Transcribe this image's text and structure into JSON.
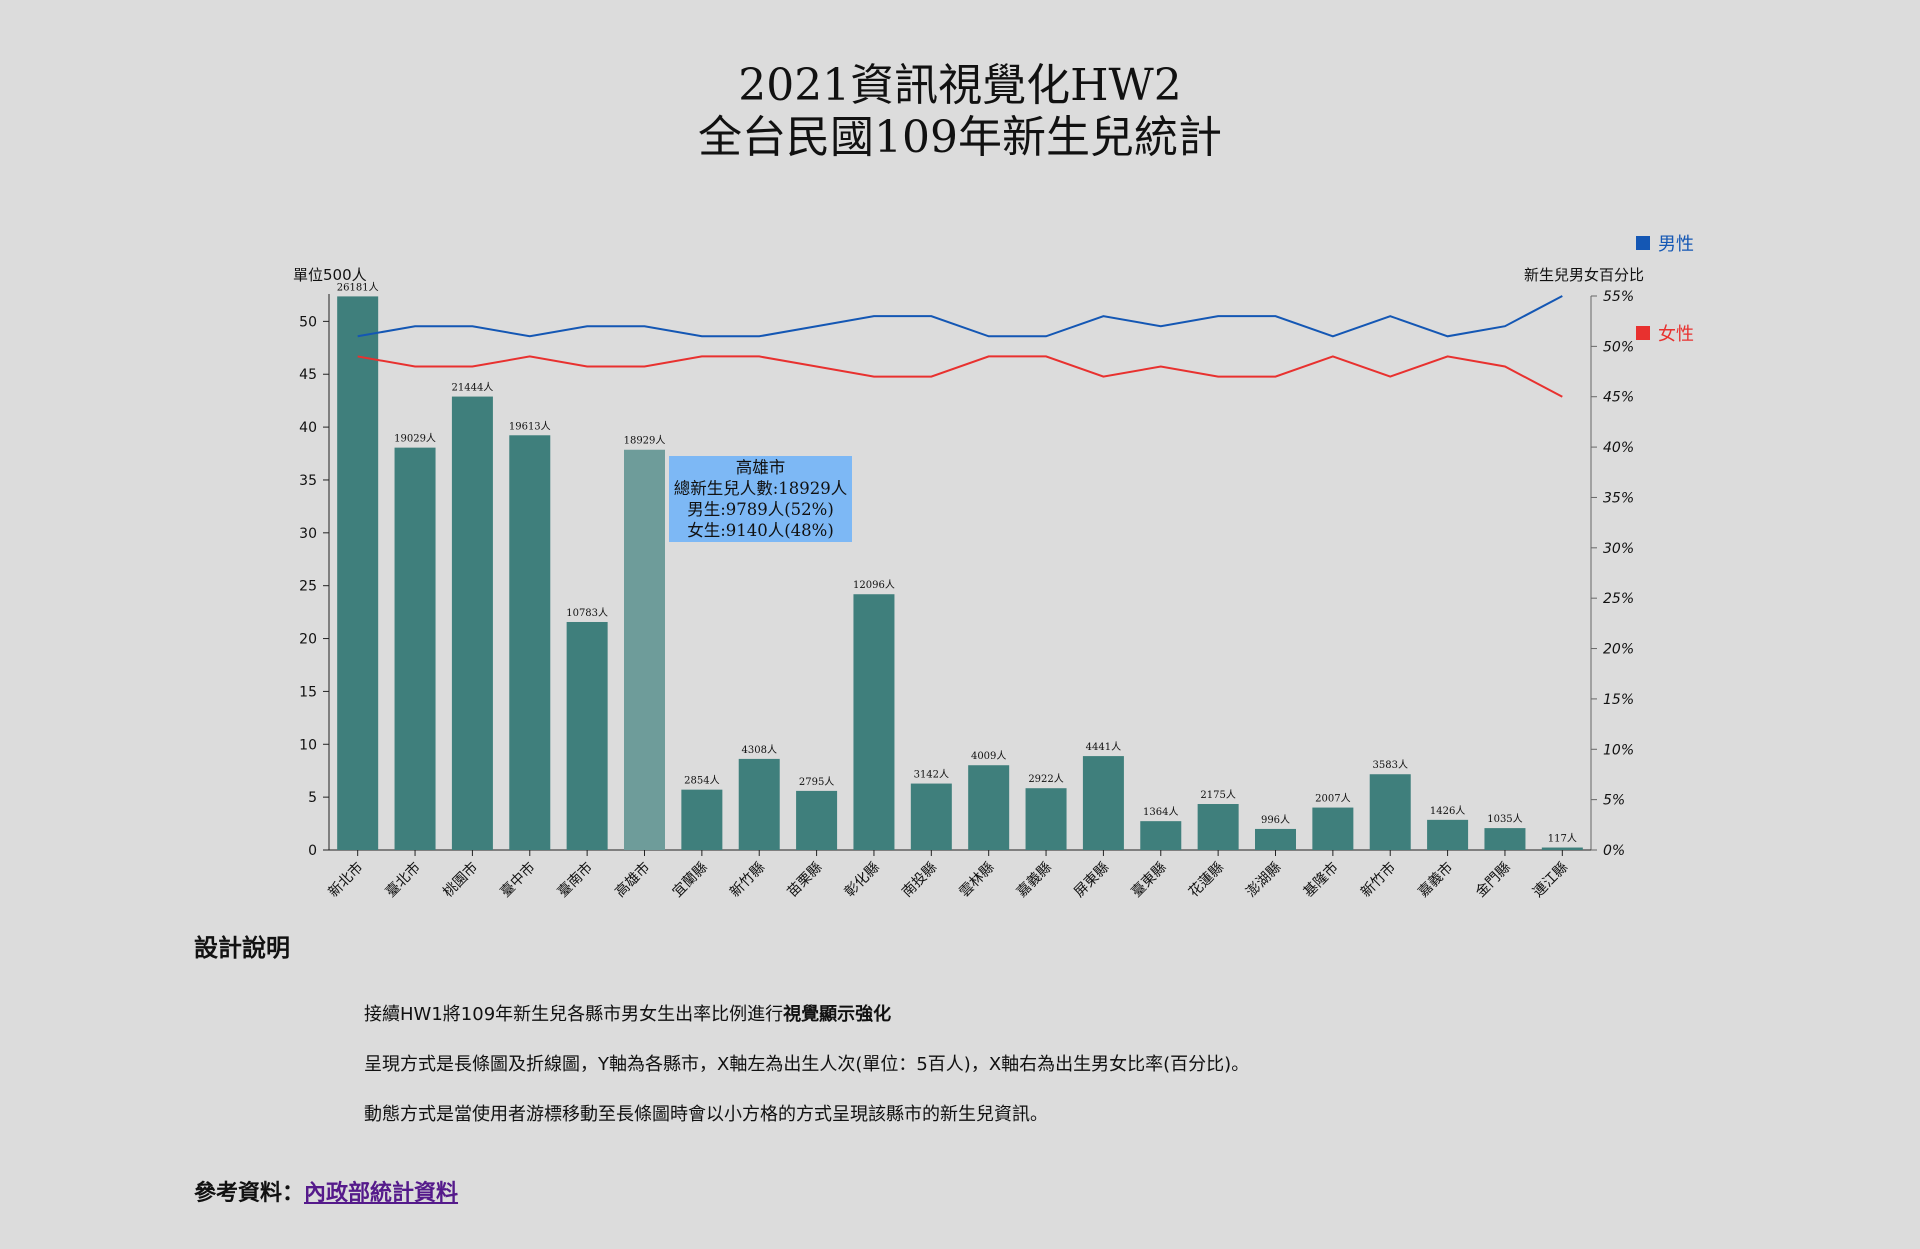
{
  "header": {
    "title_line1": "2021資訊視覺化HW2",
    "title_line2": "全台民國109年新生兒統計"
  },
  "chart_data": {
    "type": "bar",
    "left_axis_label": "單位500人",
    "right_axis_label": "新生兒男女百分比",
    "left_ylim": [
      0,
      52.4
    ],
    "left_ticks": [
      0,
      5,
      10,
      15,
      20,
      25,
      30,
      35,
      40,
      45,
      50
    ],
    "right_ylim": [
      0,
      55
    ],
    "right_ticks": [
      "0%",
      "5%",
      "10%",
      "15%",
      "20%",
      "25%",
      "30%",
      "35%",
      "40%",
      "45%",
      "50%",
      "55%"
    ],
    "categories": [
      "新北市",
      "臺北市",
      "桃園市",
      "臺中市",
      "臺南市",
      "高雄市",
      "宜蘭縣",
      "新竹縣",
      "苗栗縣",
      "彰化縣",
      "南投縣",
      "雲林縣",
      "嘉義縣",
      "屏東縣",
      "臺東縣",
      "花蓮縣",
      "澎湖縣",
      "基隆市",
      "新竹市",
      "嘉義市",
      "金門縣",
      "連江縣"
    ],
    "values": [
      26181,
      19029,
      21444,
      19613,
      10783,
      18929,
      2854,
      4308,
      2795,
      12096,
      3142,
      4009,
      2922,
      4441,
      1364,
      2175,
      996,
      2007,
      3583,
      1426,
      1035,
      117
    ],
    "value_labels": [
      "26181人",
      "19029人",
      "21444人",
      "19613人",
      "10783人",
      "18929人",
      "2854人",
      "4308人",
      "2795人",
      "12096人",
      "3142人",
      "4009人",
      "2922人",
      "4441人",
      "1364人",
      "2175人",
      "996人",
      "2007人",
      "3583人",
      "1426人",
      "1035人",
      "117人"
    ],
    "series": [
      {
        "name": "男性",
        "color": "#1457b4",
        "values": [
          51,
          52,
          52,
          51,
          52,
          52,
          51,
          51,
          52,
          53,
          53,
          51,
          51,
          53,
          52,
          53,
          53,
          51,
          53,
          51,
          52,
          55
        ]
      },
      {
        "name": "女性",
        "color": "#e8312f",
        "values": [
          49,
          48,
          48,
          49,
          48,
          48,
          49,
          49,
          48,
          47,
          47,
          49,
          49,
          47,
          48,
          47,
          47,
          49,
          47,
          49,
          48,
          45
        ]
      }
    ],
    "bar_color": "#3f7f7c",
    "highlight_color": "#6e9c9a",
    "highlight_index": 5
  },
  "tooltip": {
    "city": "高雄市",
    "total": "總新生兒人數:18929人",
    "male": "男生:9789人(52%)",
    "female": "女生:9140人(48%)"
  },
  "description": {
    "heading": "設計說明",
    "p1_pre": "接續HW1將109年新生兒各縣市男女生出率比例進行",
    "p1_bold": "視覺顯示強化",
    "p2": "呈現方式是長條圖及折線圖，Y軸為各縣市，X軸左為出生人次(單位：5百人)，X軸右為出生男女比率(百分比)。",
    "p3": "動態方式是當使用者游標移動至長條圖時會以小方格的方式呈現該縣市的新生兒資訊。"
  },
  "reference": {
    "label": "參考資料：",
    "link_text": "內政部統計資料"
  }
}
